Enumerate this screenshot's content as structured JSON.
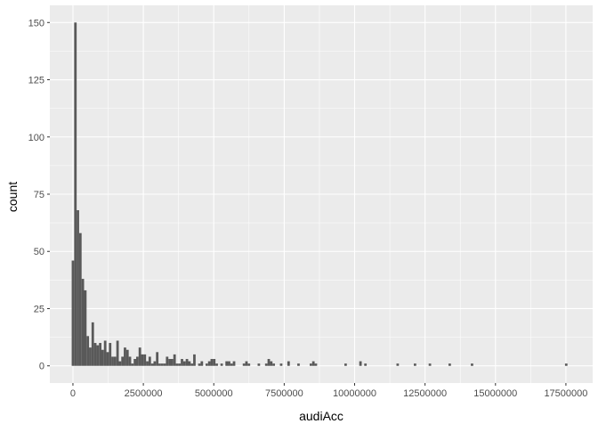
{
  "chart_data": {
    "type": "bar",
    "title": "",
    "xlabel": "audiAcc",
    "ylabel": "count",
    "xlim": [
      -820000,
      18450000
    ],
    "ylim": [
      -7.5,
      157.5
    ],
    "x_ticks": [
      0,
      2500000,
      5000000,
      7500000,
      10000000,
      12500000,
      15000000,
      17500000
    ],
    "x_tick_labels": [
      "0",
      "2500000",
      "5000000",
      "7500000",
      "10000000",
      "12500000",
      "15000000",
      "17500000"
    ],
    "y_ticks": [
      0,
      25,
      50,
      75,
      100,
      125,
      150
    ],
    "y_tick_labels": [
      "0",
      "25",
      "50",
      "75",
      "100",
      "125",
      "150"
    ],
    "bin_width": 88000,
    "grid": true,
    "bar_color": "#595959",
    "panel_background": "#ebebeb",
    "grid_color": "#ffffff",
    "bins": [
      {
        "x": 0,
        "count": 46
      },
      {
        "x": 88000,
        "count": 150
      },
      {
        "x": 176000,
        "count": 68
      },
      {
        "x": 264000,
        "count": 58
      },
      {
        "x": 352000,
        "count": 38
      },
      {
        "x": 440000,
        "count": 33
      },
      {
        "x": 528000,
        "count": 13
      },
      {
        "x": 616000,
        "count": 8
      },
      {
        "x": 704000,
        "count": 19
      },
      {
        "x": 792000,
        "count": 10
      },
      {
        "x": 880000,
        "count": 9
      },
      {
        "x": 968000,
        "count": 10
      },
      {
        "x": 1056000,
        "count": 7
      },
      {
        "x": 1144000,
        "count": 11
      },
      {
        "x": 1232000,
        "count": 6
      },
      {
        "x": 1320000,
        "count": 10
      },
      {
        "x": 1408000,
        "count": 4
      },
      {
        "x": 1496000,
        "count": 4
      },
      {
        "x": 1584000,
        "count": 11
      },
      {
        "x": 1672000,
        "count": 2
      },
      {
        "x": 1760000,
        "count": 4
      },
      {
        "x": 1848000,
        "count": 8
      },
      {
        "x": 1936000,
        "count": 7
      },
      {
        "x": 2024000,
        "count": 4
      },
      {
        "x": 2112000,
        "count": 1
      },
      {
        "x": 2200000,
        "count": 3
      },
      {
        "x": 2288000,
        "count": 4
      },
      {
        "x": 2376000,
        "count": 8
      },
      {
        "x": 2464000,
        "count": 5
      },
      {
        "x": 2552000,
        "count": 5
      },
      {
        "x": 2640000,
        "count": 2
      },
      {
        "x": 2728000,
        "count": 4
      },
      {
        "x": 2816000,
        "count": 1
      },
      {
        "x": 2904000,
        "count": 2
      },
      {
        "x": 2992000,
        "count": 6
      },
      {
        "x": 3080000,
        "count": 1
      },
      {
        "x": 3168000,
        "count": 1
      },
      {
        "x": 3256000,
        "count": 1
      },
      {
        "x": 3344000,
        "count": 4
      },
      {
        "x": 3432000,
        "count": 3
      },
      {
        "x": 3520000,
        "count": 3
      },
      {
        "x": 3608000,
        "count": 5
      },
      {
        "x": 3696000,
        "count": 1
      },
      {
        "x": 3784000,
        "count": 1
      },
      {
        "x": 3872000,
        "count": 3
      },
      {
        "x": 3960000,
        "count": 2
      },
      {
        "x": 4048000,
        "count": 3
      },
      {
        "x": 4136000,
        "count": 2
      },
      {
        "x": 4224000,
        "count": 1
      },
      {
        "x": 4312000,
        "count": 5
      },
      {
        "x": 4488000,
        "count": 1
      },
      {
        "x": 4576000,
        "count": 2
      },
      {
        "x": 4752000,
        "count": 1
      },
      {
        "x": 4840000,
        "count": 2
      },
      {
        "x": 4928000,
        "count": 3
      },
      {
        "x": 5016000,
        "count": 3
      },
      {
        "x": 5104000,
        "count": 1
      },
      {
        "x": 5280000,
        "count": 1
      },
      {
        "x": 5456000,
        "count": 2
      },
      {
        "x": 5544000,
        "count": 2
      },
      {
        "x": 5632000,
        "count": 1
      },
      {
        "x": 5720000,
        "count": 2
      },
      {
        "x": 6072000,
        "count": 1
      },
      {
        "x": 6160000,
        "count": 2
      },
      {
        "x": 6248000,
        "count": 1
      },
      {
        "x": 6600000,
        "count": 1
      },
      {
        "x": 6864000,
        "count": 1
      },
      {
        "x": 6952000,
        "count": 3
      },
      {
        "x": 7040000,
        "count": 2
      },
      {
        "x": 7128000,
        "count": 1
      },
      {
        "x": 7392000,
        "count": 1
      },
      {
        "x": 7656000,
        "count": 2
      },
      {
        "x": 8008000,
        "count": 1
      },
      {
        "x": 8448000,
        "count": 1
      },
      {
        "x": 8536000,
        "count": 2
      },
      {
        "x": 8624000,
        "count": 1
      },
      {
        "x": 9680000,
        "count": 1
      },
      {
        "x": 10208000,
        "count": 2
      },
      {
        "x": 10384000,
        "count": 1
      },
      {
        "x": 11528000,
        "count": 1
      },
      {
        "x": 12144000,
        "count": 1
      },
      {
        "x": 12672000,
        "count": 1
      },
      {
        "x": 13376000,
        "count": 1
      },
      {
        "x": 14168000,
        "count": 1
      },
      {
        "x": 17512000,
        "count": 1
      }
    ]
  }
}
